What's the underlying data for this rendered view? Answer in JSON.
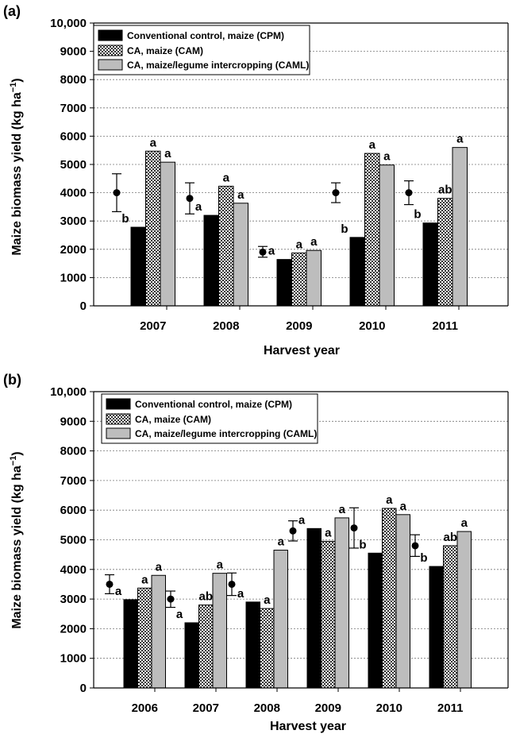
{
  "chart_data": [
    {
      "panel_label": "(a)",
      "type": "bar",
      "xlabel": "Harvest year",
      "ylabel": "Maize biomass yield (kg ha",
      "ylabel_exponent": "−1",
      "ylabel_close": ")",
      "ylim": [
        0,
        10000
      ],
      "yticks": [
        "0",
        "1000",
        "2000",
        "3000",
        "4000",
        "5000",
        "6000",
        "7000",
        "8000",
        "9000",
        "10,000"
      ],
      "categories": [
        "2007",
        "2008",
        "2009",
        "2010",
        "2011"
      ],
      "series": [
        {
          "name": "Conventional control, maize (CPM)",
          "pattern": "solid-black",
          "values": [
            2780,
            3200,
            1640,
            2420,
            2930
          ],
          "sig": [
            "b",
            "a",
            "a",
            "b",
            "b"
          ]
        },
        {
          "name": "CA, maize (CAM)",
          "pattern": "dotted",
          "values": [
            5470,
            4230,
            1870,
            5390,
            3800
          ],
          "sig": [
            "a",
            "a",
            "a",
            "a",
            "ab"
          ]
        },
        {
          "name": "CA, maize/legume intercropping (CAML)",
          "pattern": "gray",
          "values": [
            5080,
            3630,
            1960,
            4980,
            5600
          ],
          "sig": [
            "a",
            "a",
            "a",
            "a",
            "a"
          ]
        }
      ],
      "lsd": [
        {
          "value": 4000,
          "low": 3330,
          "high": 4670
        },
        {
          "value": 3800,
          "low": 3250,
          "high": 4350
        },
        {
          "value": 1900,
          "low": 1720,
          "high": 2100
        },
        {
          "value": 4000,
          "low": 3650,
          "high": 4350
        },
        {
          "value": 4000,
          "low": 3580,
          "high": 4420
        }
      ],
      "legend_position": "top-left",
      "grid": true
    },
    {
      "panel_label": "(b)",
      "type": "bar",
      "xlabel": "Harvest year",
      "ylabel": "Maize biomass yield (kg ha",
      "ylabel_exponent": "−1",
      "ylabel_close": ")",
      "ylim": [
        0,
        10000
      ],
      "yticks": [
        "0",
        "1000",
        "2000",
        "3000",
        "4000",
        "5000",
        "6000",
        "7000",
        "8000",
        "9000",
        "10,000"
      ],
      "categories": [
        "2006",
        "2007",
        "2008",
        "2009",
        "2010",
        "2011"
      ],
      "series": [
        {
          "name": "Conventional control, maize (CPM)",
          "pattern": "solid-black",
          "values": [
            2980,
            2200,
            2900,
            5380,
            4550,
            4100
          ],
          "sig": [
            "a",
            "a",
            "a",
            "a",
            "b",
            "b"
          ]
        },
        {
          "name": "CA, maize (CAM)",
          "pattern": "dotted",
          "values": [
            3370,
            2800,
            2680,
            4950,
            6060,
            4800
          ],
          "sig": [
            "a",
            "ab",
            "a",
            "a",
            "a",
            "ab"
          ]
        },
        {
          "name": "CA, maize/legume intercropping (CAML)",
          "pattern": "gray",
          "values": [
            3800,
            3870,
            4650,
            5740,
            5850,
            5280
          ],
          "sig": [
            "a",
            "a",
            "a",
            "a",
            "a",
            "a"
          ]
        }
      ],
      "lsd": [
        {
          "value": 3500,
          "low": 3180,
          "high": 3820
        },
        {
          "value": 3000,
          "low": 2720,
          "high": 3270
        },
        {
          "value": 3500,
          "low": 3120,
          "high": 3880
        },
        {
          "value": 5300,
          "low": 4960,
          "high": 5640
        },
        {
          "value": 5400,
          "low": 4720,
          "high": 6080
        },
        {
          "value": 4800,
          "low": 4440,
          "high": 5170
        }
      ],
      "legend_position": "top-left",
      "grid": true
    }
  ]
}
